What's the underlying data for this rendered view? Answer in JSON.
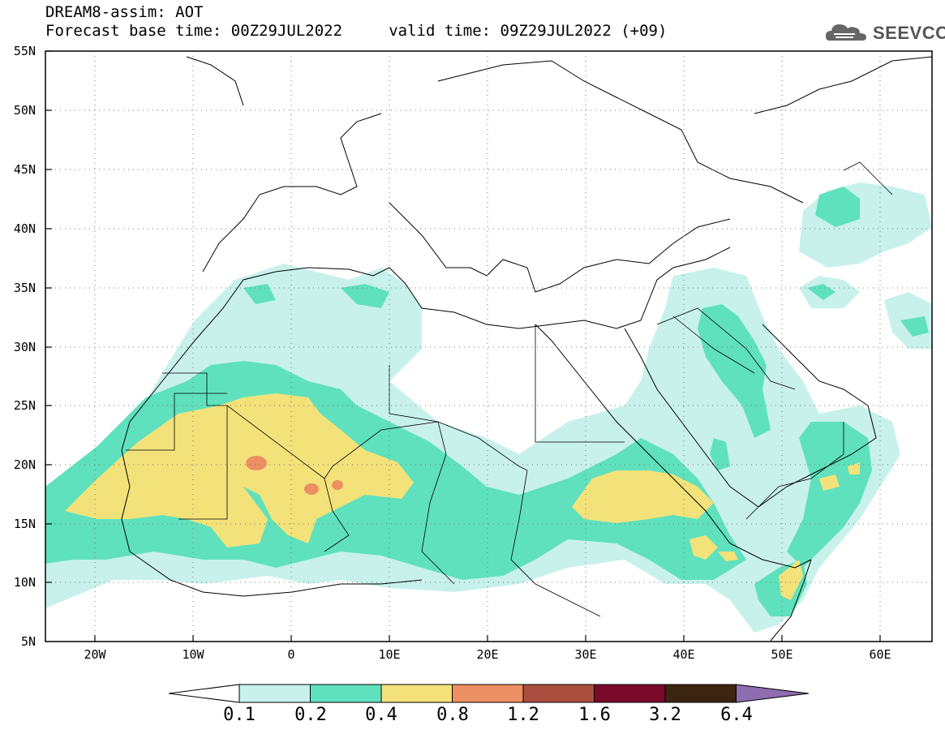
{
  "title_line1": "DREAM8-assim: AOT",
  "title_line2": "Forecast base time: 00Z29JUL2022     valid time: 09Z29JUL2022 (+09)",
  "logo_text": "SEEVCCC",
  "lat_labels": [
    "55N",
    "50N",
    "45N",
    "40N",
    "35N",
    "30N",
    "25N",
    "20N",
    "15N",
    "10N",
    "5N"
  ],
  "lon_labels": [
    "20W",
    "10W",
    "0",
    "10E",
    "20E",
    "30E",
    "40E",
    "50E",
    "60E"
  ],
  "colorbar": {
    "colors": [
      "#c8f1ec",
      "#5fe1bd",
      "#f3e27a",
      "#ec8f63",
      "#aa4f3f",
      "#7a0a2c",
      "#3c2412",
      "#8e6eb0"
    ],
    "labels": [
      "0.1",
      "0.2",
      "0.4",
      "0.8",
      "1.2",
      "1.6",
      "3.2",
      "6.4"
    ]
  }
}
